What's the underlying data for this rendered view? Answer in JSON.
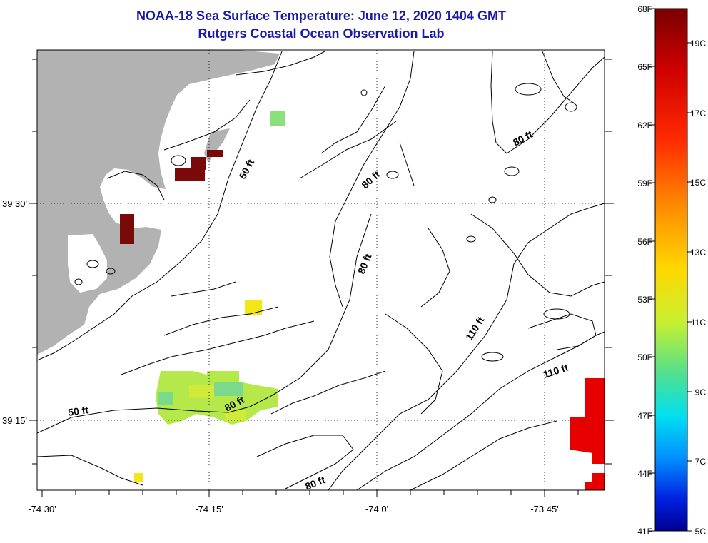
{
  "title": "NOAA-18 Sea Surface Temperature:  June 12, 2020 1404 GMT",
  "subtitle": "Rutgers Coastal Ocean Observation Lab",
  "axes": {
    "x_ticks": [
      "-74 30'",
      "-74 15'",
      "-74 0'",
      "-73 45'"
    ],
    "y_ticks": [
      "39 30'",
      "39 15'"
    ]
  },
  "contour_labels": [
    "50 ft",
    "50 ft",
    "80 ft",
    "80 ft",
    "80 ft",
    "80 ft",
    "80 ft",
    "110 ft",
    "110 ft"
  ],
  "colorbar": {
    "f_labels": [
      "68F",
      "65F",
      "62F",
      "59F",
      "56F",
      "53F",
      "50F",
      "47F",
      "44F",
      "41F"
    ],
    "c_labels": [
      "19C",
      "17C",
      "15C",
      "13C",
      "11C",
      "9C",
      "7C",
      "5C"
    ]
  },
  "colors": {
    "land": "#b2b2b2",
    "title": "#1a1aa8",
    "warm": "#7a0a0a",
    "hot": "#e60000",
    "yellow": "#f5e61a",
    "green": "#b5e84a",
    "teal": "#7ad98a"
  }
}
